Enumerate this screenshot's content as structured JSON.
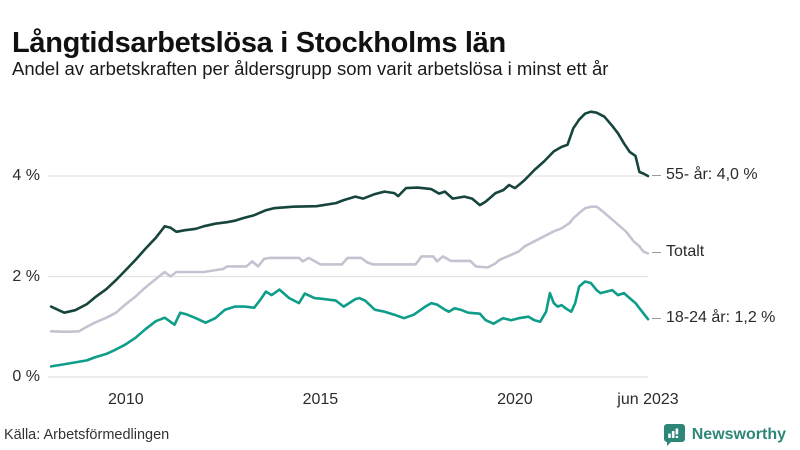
{
  "header": {
    "title": "Långtidsarbetslösa i Stockholms län",
    "subtitle": "Andel av arbetskraften per åldersgrupp som varit arbetslösa i minst ett år"
  },
  "footer": {
    "source": "Källa: Arbetsförmedlingen",
    "brand_name": "Newsworthy",
    "brand_color": "#2e8678"
  },
  "colors": {
    "grid": "#e2e2e2",
    "series_55": "#17453e",
    "series_total": "#c6c3d1",
    "series_1824": "#0d9d89"
  },
  "chart_data": {
    "type": "line",
    "title": "Långtidsarbetslösa i Stockholms län",
    "subtitle": "Andel av arbetskraften per åldersgrupp som varit arbetslösa i minst ett år",
    "xlabel": "",
    "ylabel": "",
    "xlim": [
      2008.0,
      2023.42
    ],
    "ylim": [
      0,
      5.6
    ],
    "grid": "horizontal",
    "legend_position": "right-of-line-end",
    "yticks": [
      {
        "label": "0 %",
        "value": 0
      },
      {
        "label": "2 %",
        "value": 2
      },
      {
        "label": "4 %",
        "value": 4
      }
    ],
    "xticks": [
      {
        "label": "2010",
        "year": 2010
      },
      {
        "label": "2015",
        "year": 2015
      },
      {
        "label": "2020",
        "year": 2020
      },
      {
        "label": "jun 2023",
        "year": 2023.42
      }
    ],
    "series": [
      {
        "name": "55- år",
        "label": "55- år: 4,0 %",
        "end_value_label": "4,0 %",
        "color": "#17453e",
        "points": [
          [
            2008.08,
            1.4
          ],
          [
            2008.25,
            1.34
          ],
          [
            2008.42,
            1.28
          ],
          [
            2008.7,
            1.33
          ],
          [
            2009.0,
            1.45
          ],
          [
            2009.2,
            1.58
          ],
          [
            2009.5,
            1.75
          ],
          [
            2009.75,
            1.93
          ],
          [
            2010.0,
            2.13
          ],
          [
            2010.25,
            2.33
          ],
          [
            2010.5,
            2.55
          ],
          [
            2010.77,
            2.77
          ],
          [
            2011.0,
            3.0
          ],
          [
            2011.15,
            2.97
          ],
          [
            2011.3,
            2.89
          ],
          [
            2011.5,
            2.92
          ],
          [
            2011.8,
            2.95
          ],
          [
            2012.0,
            3.0
          ],
          [
            2012.3,
            3.05
          ],
          [
            2012.6,
            3.08
          ],
          [
            2012.8,
            3.11
          ],
          [
            2013.0,
            3.16
          ],
          [
            2013.3,
            3.22
          ],
          [
            2013.6,
            3.32
          ],
          [
            2013.8,
            3.36
          ],
          [
            2014.3,
            3.39
          ],
          [
            2014.9,
            3.4
          ],
          [
            2015.4,
            3.46
          ],
          [
            2015.6,
            3.52
          ],
          [
            2015.9,
            3.59
          ],
          [
            2016.1,
            3.55
          ],
          [
            2016.4,
            3.64
          ],
          [
            2016.65,
            3.69
          ],
          [
            2016.9,
            3.66
          ],
          [
            2017.0,
            3.6
          ],
          [
            2017.2,
            3.76
          ],
          [
            2017.5,
            3.77
          ],
          [
            2017.85,
            3.74
          ],
          [
            2018.05,
            3.65
          ],
          [
            2018.2,
            3.69
          ],
          [
            2018.4,
            3.55
          ],
          [
            2018.7,
            3.59
          ],
          [
            2018.9,
            3.55
          ],
          [
            2019.1,
            3.42
          ],
          [
            2019.25,
            3.49
          ],
          [
            2019.5,
            3.66
          ],
          [
            2019.7,
            3.72
          ],
          [
            2019.85,
            3.82
          ],
          [
            2020.0,
            3.76
          ],
          [
            2020.1,
            3.82
          ],
          [
            2020.25,
            3.92
          ],
          [
            2020.5,
            4.12
          ],
          [
            2020.75,
            4.29
          ],
          [
            2021.0,
            4.49
          ],
          [
            2021.2,
            4.58
          ],
          [
            2021.35,
            4.62
          ],
          [
            2021.5,
            4.95
          ],
          [
            2021.65,
            5.12
          ],
          [
            2021.8,
            5.24
          ],
          [
            2021.95,
            5.28
          ],
          [
            2022.1,
            5.26
          ],
          [
            2022.3,
            5.18
          ],
          [
            2022.5,
            5.0
          ],
          [
            2022.65,
            4.85
          ],
          [
            2022.8,
            4.65
          ],
          [
            2022.95,
            4.48
          ],
          [
            2023.1,
            4.4
          ],
          [
            2023.2,
            4.08
          ],
          [
            2023.3,
            4.05
          ],
          [
            2023.42,
            4.0
          ]
        ]
      },
      {
        "name": "Totalt",
        "label": "Totalt",
        "end_value_label": "",
        "color": "#c6c3d1",
        "points": [
          [
            2008.08,
            0.91
          ],
          [
            2008.5,
            0.9
          ],
          [
            2008.8,
            0.91
          ],
          [
            2009.0,
            1.0
          ],
          [
            2009.2,
            1.08
          ],
          [
            2009.5,
            1.18
          ],
          [
            2009.75,
            1.28
          ],
          [
            2010.0,
            1.45
          ],
          [
            2010.25,
            1.6
          ],
          [
            2010.5,
            1.78
          ],
          [
            2010.77,
            1.95
          ],
          [
            2011.0,
            2.09
          ],
          [
            2011.15,
            2.0
          ],
          [
            2011.3,
            2.09
          ],
          [
            2012.0,
            2.09
          ],
          [
            2012.5,
            2.15
          ],
          [
            2012.6,
            2.2
          ],
          [
            2013.1,
            2.2
          ],
          [
            2013.25,
            2.3
          ],
          [
            2013.4,
            2.2
          ],
          [
            2013.55,
            2.35
          ],
          [
            2013.7,
            2.37
          ],
          [
            2014.45,
            2.37
          ],
          [
            2014.55,
            2.3
          ],
          [
            2014.7,
            2.37
          ],
          [
            2015.0,
            2.24
          ],
          [
            2015.55,
            2.24
          ],
          [
            2015.7,
            2.37
          ],
          [
            2016.05,
            2.37
          ],
          [
            2016.2,
            2.28
          ],
          [
            2016.35,
            2.24
          ],
          [
            2017.45,
            2.24
          ],
          [
            2017.6,
            2.4
          ],
          [
            2017.9,
            2.4
          ],
          [
            2018.0,
            2.3
          ],
          [
            2018.15,
            2.4
          ],
          [
            2018.35,
            2.31
          ],
          [
            2018.85,
            2.31
          ],
          [
            2019.0,
            2.2
          ],
          [
            2019.3,
            2.18
          ],
          [
            2019.5,
            2.26
          ],
          [
            2019.6,
            2.33
          ],
          [
            2019.9,
            2.43
          ],
          [
            2020.1,
            2.5
          ],
          [
            2020.25,
            2.6
          ],
          [
            2020.5,
            2.7
          ],
          [
            2020.75,
            2.8
          ],
          [
            2021.0,
            2.9
          ],
          [
            2021.2,
            2.96
          ],
          [
            2021.4,
            3.06
          ],
          [
            2021.5,
            3.16
          ],
          [
            2021.65,
            3.26
          ],
          [
            2021.8,
            3.36
          ],
          [
            2021.95,
            3.39
          ],
          [
            2022.1,
            3.39
          ],
          [
            2022.25,
            3.3
          ],
          [
            2022.4,
            3.2
          ],
          [
            2022.55,
            3.1
          ],
          [
            2022.7,
            3.0
          ],
          [
            2022.85,
            2.9
          ],
          [
            2022.95,
            2.8
          ],
          [
            2023.05,
            2.7
          ],
          [
            2023.2,
            2.6
          ],
          [
            2023.3,
            2.5
          ],
          [
            2023.42,
            2.46
          ]
        ]
      },
      {
        "name": "18-24 år",
        "label": "18-24 år: 1,2 %",
        "end_value_label": "1,2 %",
        "color": "#0d9d89",
        "points": [
          [
            2008.08,
            0.21
          ],
          [
            2008.4,
            0.25
          ],
          [
            2008.7,
            0.29
          ],
          [
            2009.0,
            0.33
          ],
          [
            2009.2,
            0.39
          ],
          [
            2009.5,
            0.46
          ],
          [
            2009.75,
            0.55
          ],
          [
            2010.0,
            0.65
          ],
          [
            2010.25,
            0.78
          ],
          [
            2010.5,
            0.95
          ],
          [
            2010.77,
            1.11
          ],
          [
            2011.0,
            1.18
          ],
          [
            2011.25,
            1.04
          ],
          [
            2011.4,
            1.28
          ],
          [
            2011.55,
            1.25
          ],
          [
            2011.8,
            1.17
          ],
          [
            2012.05,
            1.08
          ],
          [
            2012.3,
            1.17
          ],
          [
            2012.55,
            1.34
          ],
          [
            2012.8,
            1.4
          ],
          [
            2013.05,
            1.4
          ],
          [
            2013.3,
            1.38
          ],
          [
            2013.45,
            1.53
          ],
          [
            2013.6,
            1.7
          ],
          [
            2013.75,
            1.63
          ],
          [
            2013.95,
            1.74
          ],
          [
            2014.2,
            1.57
          ],
          [
            2014.45,
            1.47
          ],
          [
            2014.6,
            1.66
          ],
          [
            2014.85,
            1.57
          ],
          [
            2015.1,
            1.55
          ],
          [
            2015.4,
            1.52
          ],
          [
            2015.6,
            1.4
          ],
          [
            2015.9,
            1.55
          ],
          [
            2016.0,
            1.57
          ],
          [
            2016.15,
            1.52
          ],
          [
            2016.4,
            1.34
          ],
          [
            2016.65,
            1.3
          ],
          [
            2016.9,
            1.24
          ],
          [
            2017.15,
            1.17
          ],
          [
            2017.4,
            1.24
          ],
          [
            2017.7,
            1.4
          ],
          [
            2017.85,
            1.47
          ],
          [
            2018.0,
            1.44
          ],
          [
            2018.2,
            1.34
          ],
          [
            2018.3,
            1.3
          ],
          [
            2018.45,
            1.37
          ],
          [
            2018.6,
            1.34
          ],
          [
            2018.8,
            1.28
          ],
          [
            2019.1,
            1.26
          ],
          [
            2019.25,
            1.13
          ],
          [
            2019.45,
            1.06
          ],
          [
            2019.6,
            1.13
          ],
          [
            2019.7,
            1.17
          ],
          [
            2019.9,
            1.13
          ],
          [
            2020.1,
            1.17
          ],
          [
            2020.35,
            1.2
          ],
          [
            2020.5,
            1.13
          ],
          [
            2020.65,
            1.1
          ],
          [
            2020.8,
            1.3
          ],
          [
            2020.9,
            1.67
          ],
          [
            2021.0,
            1.47
          ],
          [
            2021.1,
            1.4
          ],
          [
            2021.2,
            1.43
          ],
          [
            2021.3,
            1.37
          ],
          [
            2021.45,
            1.3
          ],
          [
            2021.55,
            1.47
          ],
          [
            2021.65,
            1.8
          ],
          [
            2021.8,
            1.9
          ],
          [
            2021.95,
            1.87
          ],
          [
            2022.1,
            1.73
          ],
          [
            2022.2,
            1.67
          ],
          [
            2022.35,
            1.7
          ],
          [
            2022.5,
            1.73
          ],
          [
            2022.65,
            1.63
          ],
          [
            2022.8,
            1.67
          ],
          [
            2022.95,
            1.57
          ],
          [
            2023.1,
            1.47
          ],
          [
            2023.2,
            1.37
          ],
          [
            2023.3,
            1.27
          ],
          [
            2023.42,
            1.15
          ]
        ]
      }
    ]
  }
}
